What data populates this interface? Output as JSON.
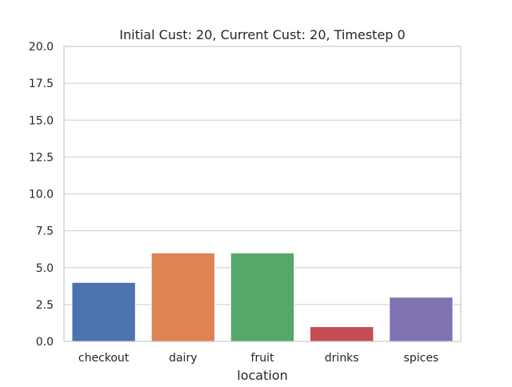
{
  "chart_data": {
    "type": "bar",
    "title": "Initial Cust: 20, Current Cust: 20, Timestep 0",
    "xlabel": "location",
    "ylabel": "",
    "categories": [
      "checkout",
      "dairy",
      "fruit",
      "drinks",
      "spices"
    ],
    "values": [
      4,
      6,
      6,
      1,
      3
    ],
    "colors": [
      "#4c72b0",
      "#dd8452",
      "#55a868",
      "#c44e52",
      "#8172b3"
    ],
    "ylim": [
      0,
      20
    ],
    "yticks": [
      "0.0",
      "2.5",
      "5.0",
      "7.5",
      "10.0",
      "12.5",
      "15.0",
      "17.5",
      "20.0"
    ],
    "grid": "horizontal",
    "legend": "none"
  }
}
